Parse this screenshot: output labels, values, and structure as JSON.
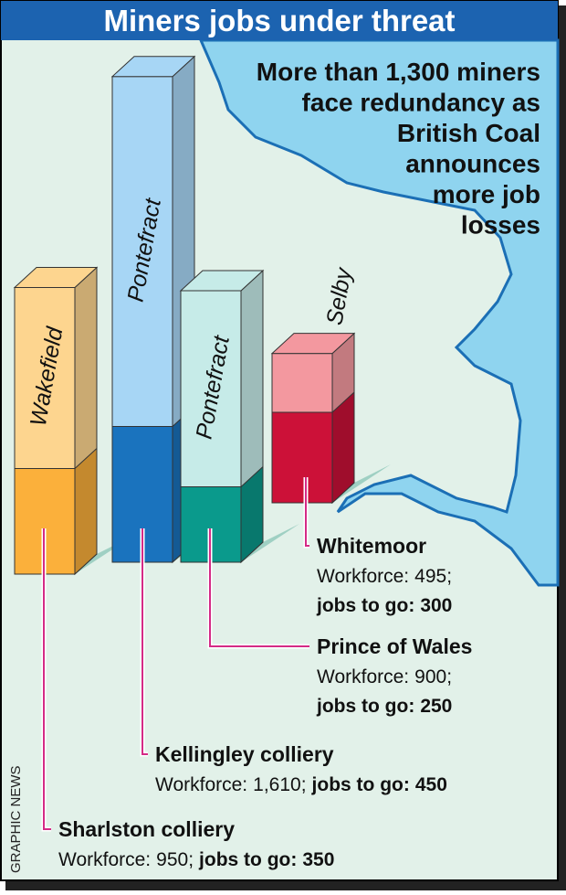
{
  "title": "Miners jobs under threat",
  "subtitle": [
    "More than 1,300 miners",
    "face redundancy as",
    "British Coal",
    "announces",
    "more job",
    "losses"
  ],
  "credit": "GRAPHIC NEWS",
  "workforce_prefix": "Workforce:",
  "jobs_prefix": "jobs to go:",
  "separator": ";",
  "collieries": [
    {
      "name": "Sharlston colliery",
      "town": "Wakefield",
      "workforce": {
        "value": 950,
        "label": "950"
      },
      "jobs": 350,
      "color": "#fdd58f",
      "jobs_color": "#fbb03b"
    },
    {
      "name": "Kellingley colliery",
      "town": "Pontefract",
      "workforce": {
        "value": 1610,
        "label": "1,610"
      },
      "jobs": 450,
      "color": "#a7d6f5",
      "jobs_color": "#1a73be"
    },
    {
      "name": "Prince of Wales",
      "town": "Pontefract",
      "workforce": {
        "value": 900,
        "label": "900"
      },
      "jobs": 250,
      "color": "#c6ebe8",
      "jobs_color": "#0a9a8c"
    },
    {
      "name": "Whitemoor",
      "town": "Selby",
      "workforce": {
        "value": 495,
        "label": "495"
      },
      "jobs": 300,
      "color": "#f3989f",
      "jobs_color": "#cc1138"
    }
  ]
}
